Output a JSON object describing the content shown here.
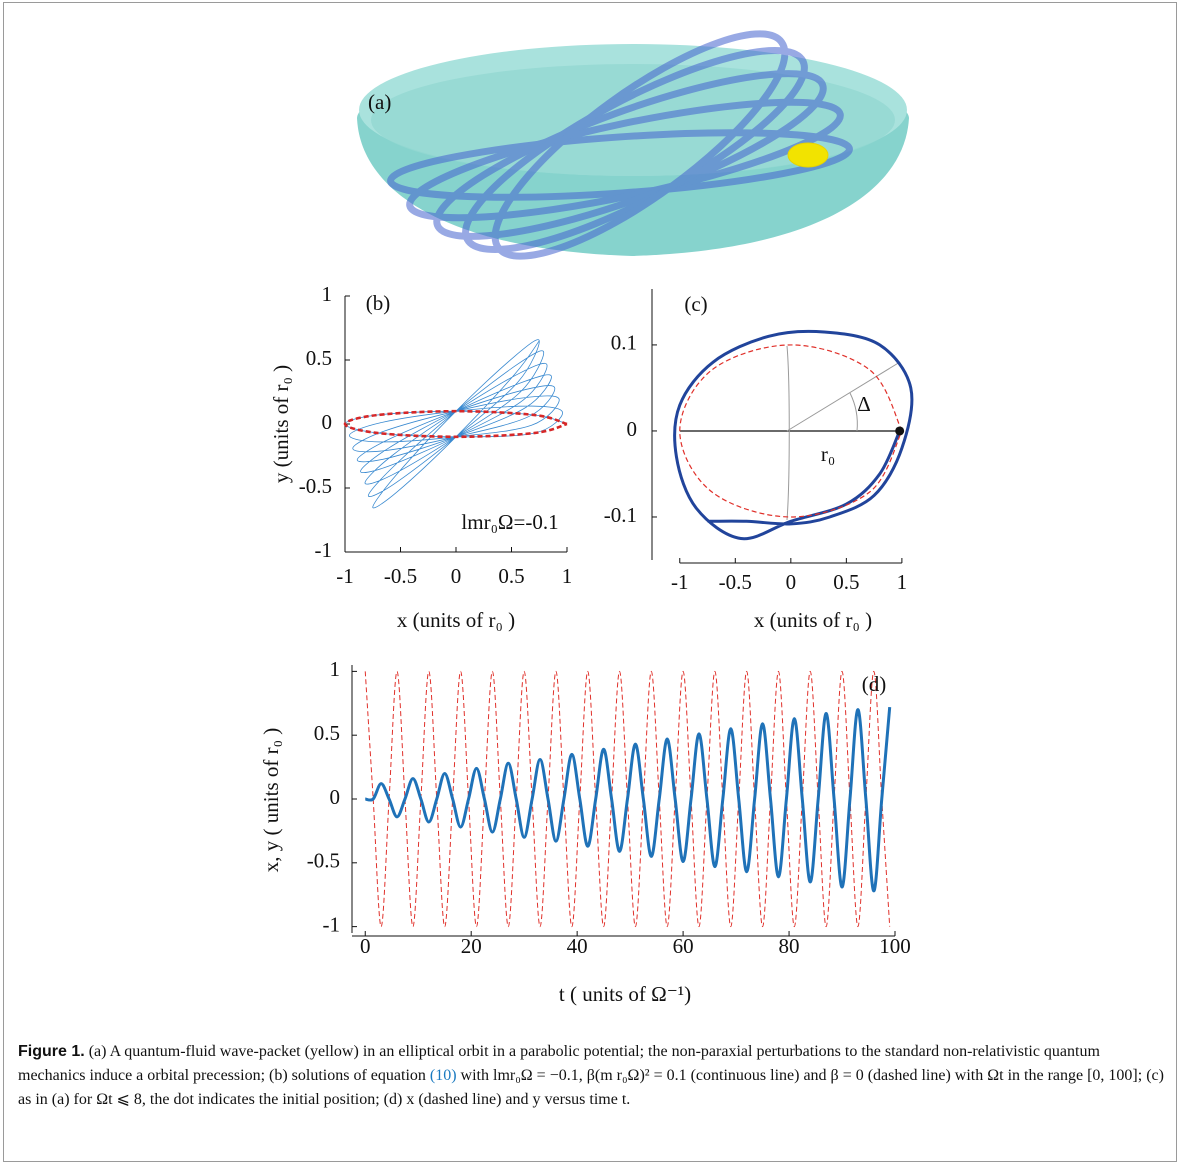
{
  "panel_a": {
    "label": "(a)"
  },
  "chart_data": [
    {
      "type": "line",
      "label": "(b)",
      "annotation": "lmr₀Ω=-0.1",
      "x_label": "x (units of r₀ )",
      "y_label": "y (units of r₀ )",
      "xlim": [
        -1,
        1
      ],
      "ylim": [
        -1,
        1
      ],
      "xticks": [
        -1,
        -0.5,
        0,
        0.5,
        1
      ],
      "yticks": [
        -1,
        -0.5,
        0,
        0.5,
        1
      ],
      "series": [
        {
          "color": "#3a8ad0",
          "linestyle": "solid",
          "x": [
            1,
            0.71,
            0,
            -0.71,
            -1,
            -0.71,
            0,
            0.71,
            0.96,
            0.68,
            0,
            -0.68,
            -0.96,
            -0.68,
            0,
            0.68,
            0.93,
            0.66,
            0,
            -0.66,
            -0.93,
            -0.66,
            0,
            0.66,
            0.89,
            0.63,
            0,
            -0.63,
            -0.89,
            -0.63,
            0,
            0.63,
            0.86,
            0.61,
            0,
            -0.61,
            -0.86,
            -0.61,
            0,
            0.61,
            0.82,
            0.58,
            0,
            -0.58,
            -0.82,
            -0.58,
            0,
            0.58,
            0.79,
            0.56,
            0,
            -0.56,
            -0.79,
            -0.56,
            0,
            0.56,
            0.75,
            0.53,
            0,
            -0.53,
            -0.75,
            -0.53,
            0,
            0.53,
            0.75
          ],
          "values": [
            0,
            0.07,
            0.1,
            0.07,
            0,
            -0.07,
            -0.1,
            -0.07,
            0.09,
            0.14,
            0.1,
            0.01,
            -0.09,
            -0.14,
            -0.1,
            -0.01,
            0.19,
            0.21,
            0.1,
            -0.06,
            -0.19,
            -0.21,
            -0.1,
            0.06,
            0.28,
            0.27,
            0.1,
            -0.13,
            -0.28,
            -0.27,
            -0.1,
            0.13,
            0.37,
            0.33,
            0.1,
            -0.19,
            -0.37,
            -0.33,
            -0.1,
            0.19,
            0.46,
            0.4,
            0.1,
            -0.25,
            -0.46,
            -0.4,
            -0.1,
            0.25,
            0.56,
            0.47,
            0.1,
            -0.33,
            -0.56,
            -0.47,
            -0.1,
            0.33,
            0.65,
            0.53,
            0.1,
            -0.39,
            -0.65,
            -0.53,
            -0.1,
            0.39,
            0.65
          ]
        },
        {
          "color": "#d62728",
          "linestyle": "dashed",
          "x": [
            1,
            0.71,
            0,
            -0.71,
            -1,
            -0.71,
            0,
            0.71,
            1
          ],
          "values": [
            0,
            0.07,
            0.1,
            0.07,
            0,
            -0.07,
            -0.1,
            -0.07,
            0
          ]
        }
      ]
    },
    {
      "type": "line",
      "label": "(c)",
      "annotations": [
        "Δ",
        "r₀"
      ],
      "x_label": "x (units of r₀ )",
      "xlim": [
        -1.25,
        1.1
      ],
      "ylim": [
        -0.15,
        0.165
      ],
      "xticks": [
        -1,
        -0.5,
        0,
        0.5,
        1
      ],
      "yticks": [
        -0.1,
        0,
        0.1
      ],
      "marker": {
        "x": 0.98,
        "y": 0,
        "color": "#111111"
      },
      "series": [
        {
          "color": "#21449b",
          "linestyle": "solid",
          "x": [
            0.98,
            0.8,
            0.5,
            0,
            -0.45,
            -0.85,
            -1.03,
            -1.0,
            -0.7,
            -0.2,
            0.3,
            0.8,
            1.08,
            1.0,
            0.75,
            0.35,
            0,
            -0.4,
            -0.75
          ],
          "values": [
            0,
            -0.05,
            -0.085,
            -0.105,
            -0.125,
            -0.09,
            -0.03,
            0.03,
            0.08,
            0.11,
            0.115,
            0.1,
            0.05,
            -0.02,
            -0.075,
            -0.1,
            -0.108,
            -0.105,
            -0.105
          ]
        },
        {
          "color": "#e0302a",
          "linestyle": "dashed",
          "x": [
            1,
            0.71,
            0,
            -0.71,
            -1,
            -0.71,
            0,
            0.71,
            1
          ],
          "values": [
            0,
            0.071,
            0.1,
            0.071,
            0,
            -0.071,
            -0.1,
            -0.071,
            0
          ]
        }
      ]
    },
    {
      "type": "line",
      "label": "(d)",
      "x_label": "t ( units of Ω⁻¹)",
      "y_label": "x, y ( units of r₀ )",
      "xlim": [
        -2.5,
        100
      ],
      "ylim": [
        -1.05,
        1.05
      ],
      "xticks": [
        0,
        20,
        40,
        60,
        80,
        100
      ],
      "yticks": [
        -1,
        -0.5,
        0,
        0.5,
        1
      ],
      "x": [
        0,
        1.5,
        3,
        4.5,
        6,
        7.5,
        9,
        10.5,
        12,
        13.5,
        15,
        16.5,
        18,
        19.5,
        21,
        22.5,
        24,
        25.5,
        27,
        28.5,
        30,
        31.5,
        33,
        34.5,
        36,
        37.5,
        39,
        40.5,
        42,
        43.5,
        45,
        46.5,
        48,
        49.5,
        51,
        52.5,
        54,
        55.5,
        57,
        58.5,
        60,
        61.5,
        63,
        64.5,
        66,
        67.5,
        69,
        70.5,
        72,
        73.5,
        75,
        76.5,
        78,
        79.5,
        81,
        82.5,
        84,
        85.5,
        87,
        88.5,
        90,
        91.5,
        93,
        94.5,
        96,
        97.5,
        99
      ],
      "series": [
        {
          "color": "#e0302a",
          "linestyle": "dashed",
          "values": [
            1,
            0,
            -1,
            0,
            1,
            0,
            -1,
            0,
            1,
            0,
            -1,
            0,
            1,
            0,
            -1,
            0,
            1,
            0,
            -1,
            0,
            1,
            0,
            -1,
            0,
            1,
            0,
            -1,
            0,
            1,
            0,
            -1,
            0,
            1,
            0,
            -1,
            0,
            1,
            0,
            -1,
            0,
            1,
            0,
            -1,
            0,
            1,
            0,
            -1,
            0,
            1,
            0,
            -1,
            0,
            1,
            0,
            -1,
            0,
            1,
            0,
            -1,
            0,
            1,
            0,
            -1,
            0,
            1,
            0,
            -1
          ]
        },
        {
          "color": "#1f72b8",
          "linestyle": "solid",
          "values": [
            0,
            0,
            0.12,
            0,
            -0.14,
            0,
            0.16,
            0,
            -0.18,
            0,
            0.2,
            0,
            -0.22,
            0,
            0.24,
            0,
            -0.26,
            0,
            0.28,
            0,
            -0.3,
            0,
            0.31,
            0,
            -0.33,
            0,
            0.35,
            0,
            -0.37,
            0,
            0.39,
            0,
            -0.41,
            0,
            0.43,
            0,
            -0.45,
            0,
            0.47,
            0,
            -0.49,
            0,
            0.51,
            0,
            -0.53,
            0,
            0.55,
            0,
            -0.57,
            0,
            0.59,
            0,
            -0.61,
            0,
            0.63,
            0,
            -0.65,
            0,
            0.67,
            0,
            -0.69,
            0,
            0.7,
            0,
            -0.72,
            0,
            0.72
          ]
        }
      ]
    }
  ],
  "caption": {
    "label": "Figure 1.",
    "text_before": " (a) A quantum-fluid wave-packet (yellow) in an elliptical orbit in a parabolic potential; the non-paraxial perturbations to the standard non-relativistic quantum mechanics induce a orbital precession; (b) solutions of equation ",
    "ref": "(10)",
    "text_after": " with lmr₀Ω = −0.1, β(m r₀Ω)² = 0.1 (continuous line) and β = 0 (dashed line) with Ωt in the range [0, 100]; (c) as in (a) for Ωt ⩽ 8, the dot indicates the initial position; (d) x (dashed line) and y versus time t."
  }
}
